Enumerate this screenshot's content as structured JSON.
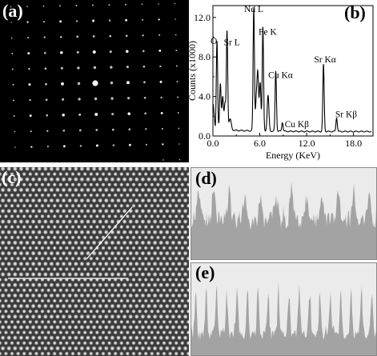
{
  "panels": {
    "a": {
      "label": "(a)"
    },
    "b": {
      "label": "(b)"
    },
    "c": {
      "label": "(c)"
    },
    "d": {
      "label": "(d)"
    },
    "e": {
      "label": "(e)"
    }
  },
  "colors": {
    "profile_fill": "#a3a3a3",
    "profile_bg": "#ebebeb",
    "eds_line": "#000000"
  },
  "chart_data": [
    {
      "type": "line",
      "xlabel": "Energy (KeV)",
      "ylabel": "Counts (x1000)",
      "xlim": [
        0,
        20.5
      ],
      "ylim": [
        0,
        13.2
      ],
      "xticks": [
        "0.0",
        "6.0",
        "12.0",
        "18.0"
      ],
      "yticks": [
        "0.0",
        "4.0",
        "8.0",
        "12.0"
      ],
      "grid": false,
      "peaks": [
        {
          "label": "O",
          "energy": 0.52,
          "counts": 9.0
        },
        {
          "label": "Sr L",
          "energy": 1.81,
          "counts": 10.0
        },
        {
          "label": "Nd L",
          "energy": 5.23,
          "counts": 12.4
        },
        {
          "label": "Fe K",
          "energy": 6.4,
          "counts": 10.5
        },
        {
          "label": "Cu Kα",
          "energy": 8.05,
          "counts": 6.1
        },
        {
          "label": "Cu Kβ",
          "energy": 8.9,
          "counts": 0.9
        },
        {
          "label": "Sr Kα",
          "energy": 14.16,
          "counts": 6.8
        },
        {
          "label": "Sr Kβ",
          "energy": 15.84,
          "counts": 1.4
        }
      ]
    },
    {
      "type": "area",
      "panel": "d",
      "peaks": 12,
      "noise_level": 0.55,
      "peak_level": 0.86
    },
    {
      "type": "area",
      "panel": "e",
      "peaks": 18,
      "noise_level": 0.28,
      "peak_level": 0.8
    }
  ]
}
